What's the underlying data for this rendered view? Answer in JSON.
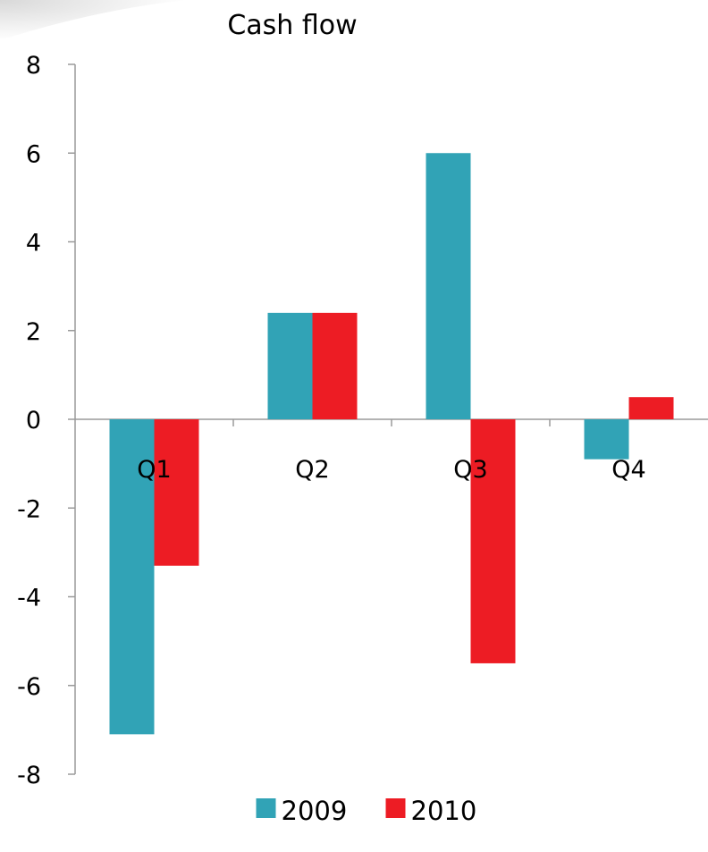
{
  "chart_data": {
    "type": "bar",
    "title": "Cash flow",
    "categories": [
      "Q1",
      "Q2",
      "Q3",
      "Q4"
    ],
    "series": [
      {
        "name": "2009",
        "values": [
          -7.1,
          2.4,
          6.0,
          -0.9
        ],
        "color": "#31A3B6"
      },
      {
        "name": "2010",
        "values": [
          -3.3,
          2.4,
          -5.5,
          0.5
        ],
        "color": "#ED1C24"
      }
    ],
    "ylim": [
      -8,
      8
    ],
    "yticks": [
      "-8",
      "-6",
      "-4",
      "-2",
      "0",
      "2",
      "4",
      "6",
      "8"
    ],
    "xlabel": "",
    "ylabel": "",
    "grid": false,
    "legend": "bottom"
  }
}
